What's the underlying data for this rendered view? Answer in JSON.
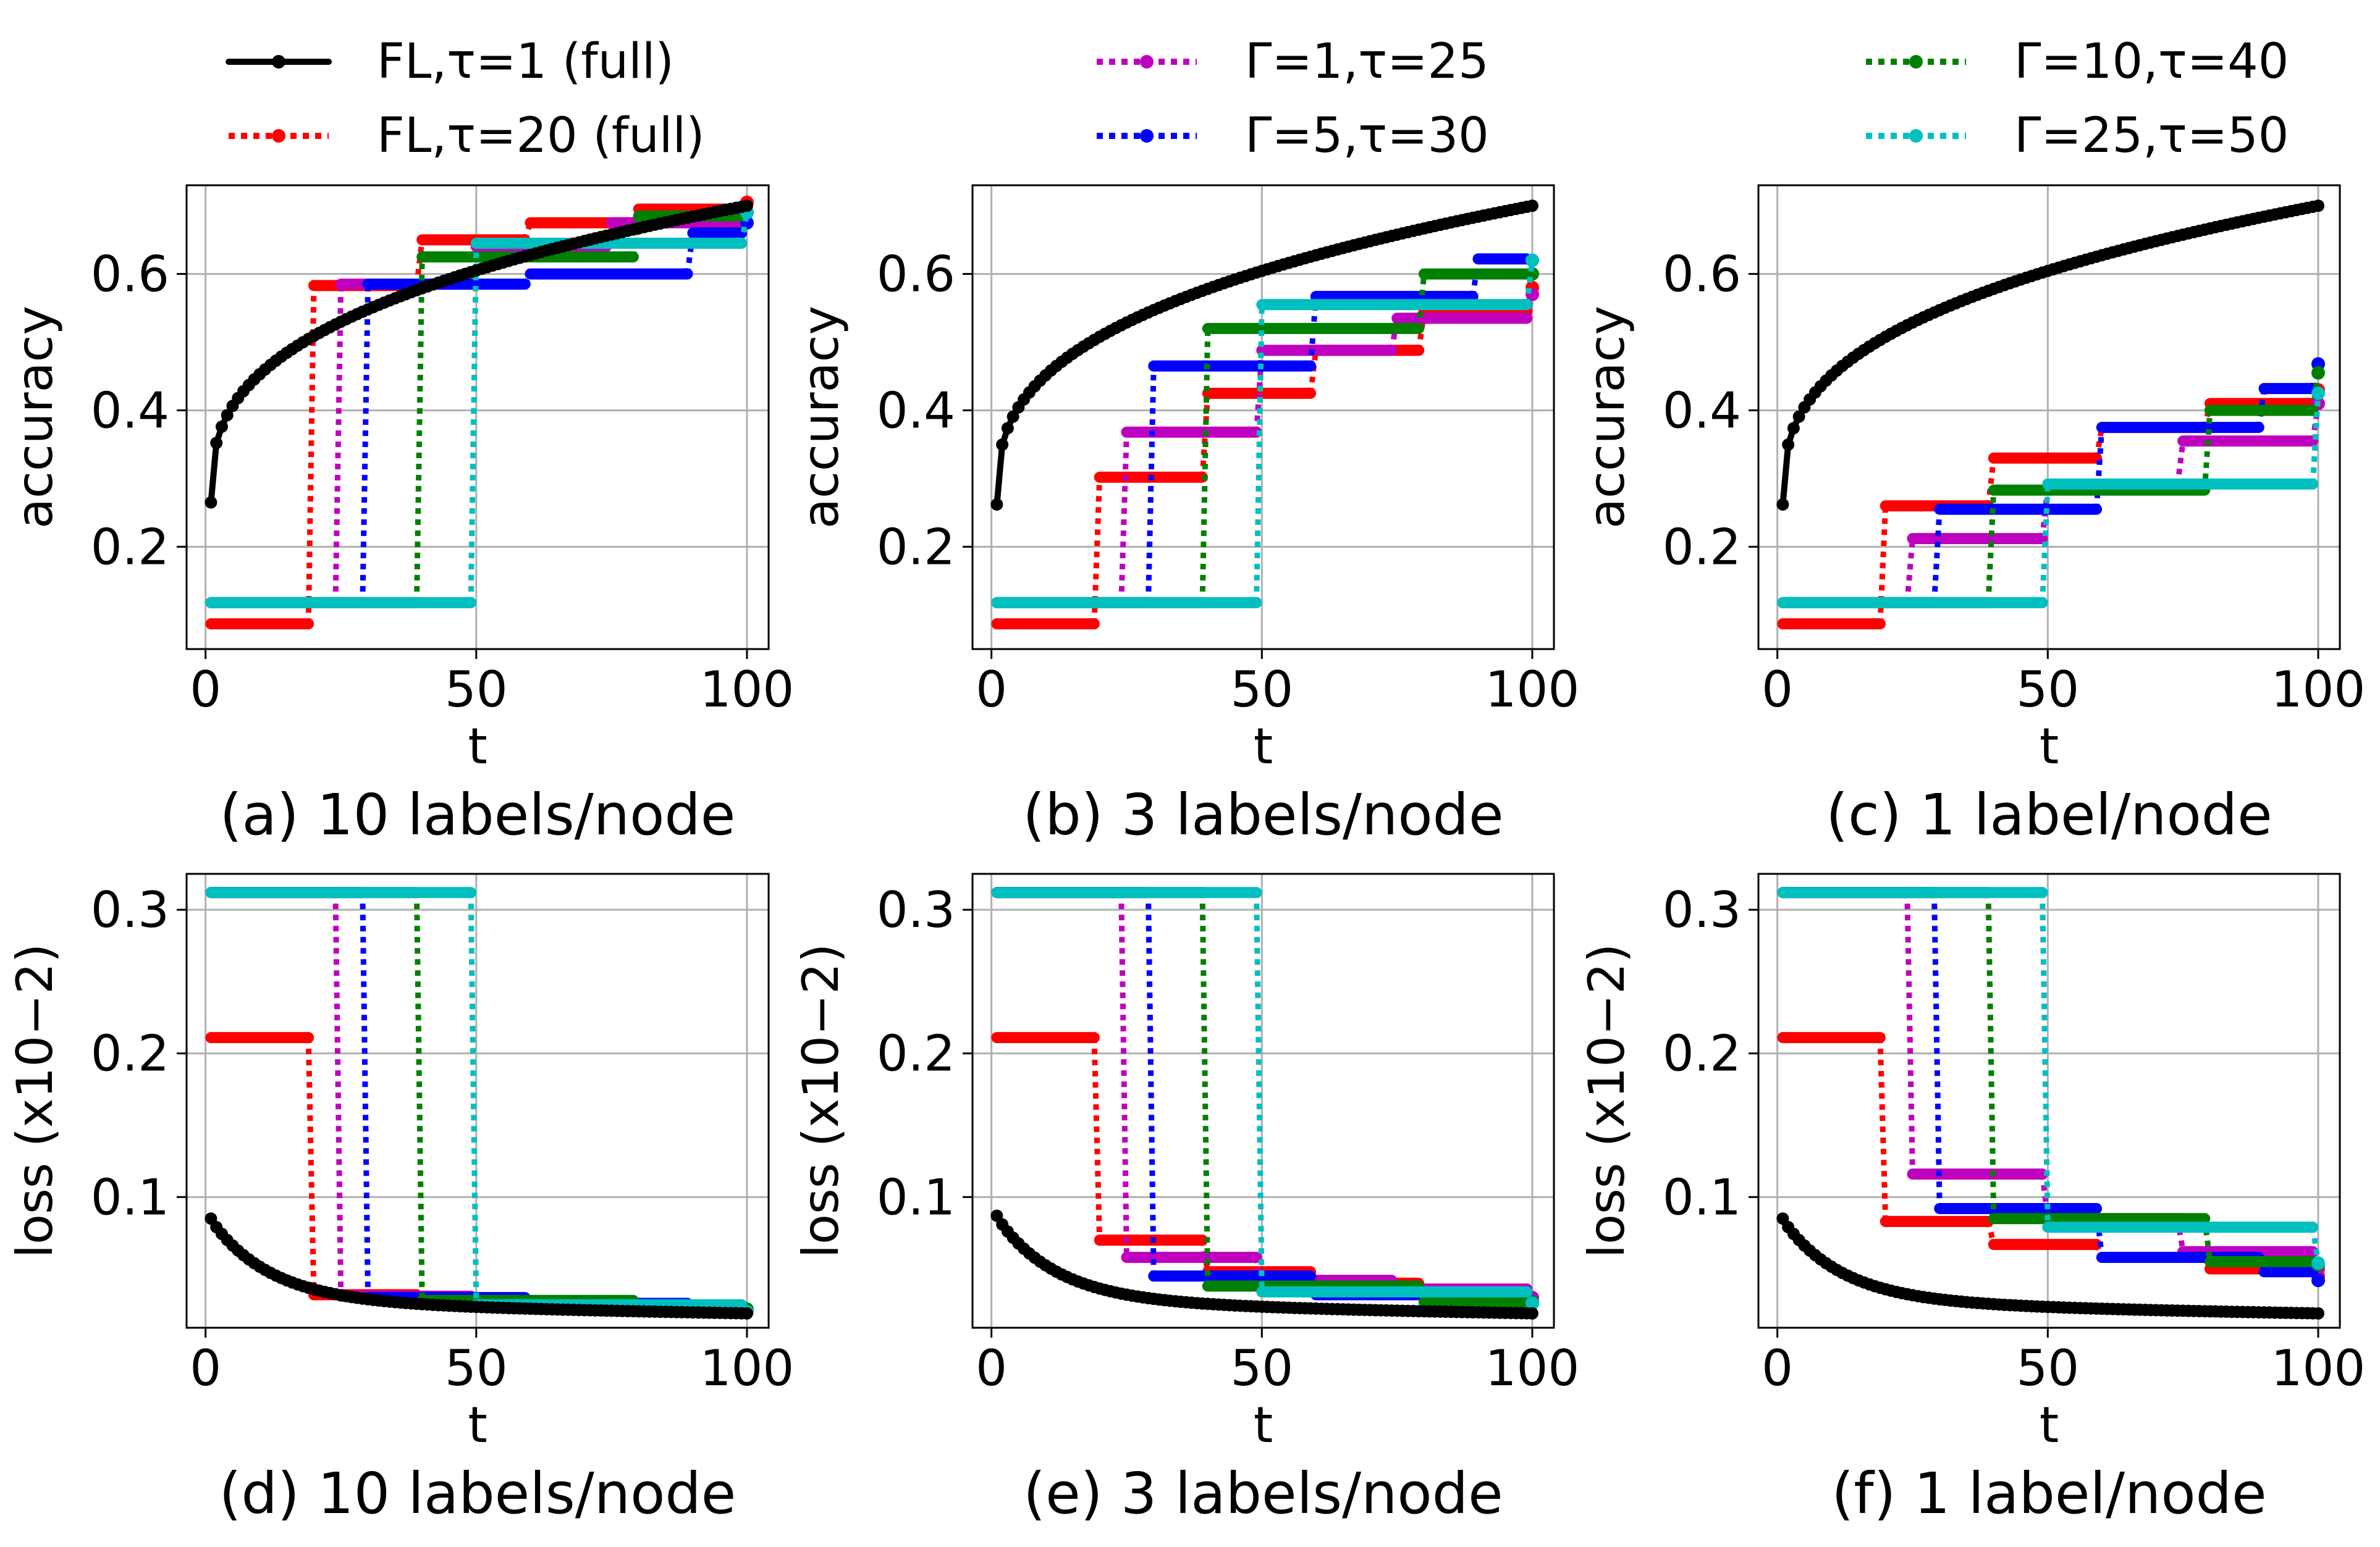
{
  "legend": {
    "entries": [
      {
        "label": "FL,τ=1 (full)",
        "color": "#000000",
        "style": "solid",
        "series": "fl1"
      },
      {
        "label": "FL,τ=20 (full)",
        "color": "#ff0000",
        "style": "dotted",
        "series": "fl20"
      },
      {
        "label": "Γ=1,τ=25",
        "color": "#bf00bf",
        "style": "dotted",
        "series": "g1"
      },
      {
        "label": "Γ=5,τ=30",
        "color": "#0000ff",
        "style": "dotted",
        "series": "g5"
      },
      {
        "label": "Γ=10,τ=40",
        "color": "#008000",
        "style": "dotted",
        "series": "g10"
      },
      {
        "label": "Γ=25,τ=50",
        "color": "#00bfbf",
        "style": "dotted",
        "series": "g25"
      }
    ]
  },
  "chart_data": [
    {
      "type": "line",
      "caption": "(a) 10 labels/node",
      "xlabel": "t",
      "ylabel": "accuracy",
      "xlim": [
        -3.5,
        104
      ],
      "ylim": [
        0.05,
        0.73
      ],
      "xticks": [
        0,
        50,
        100
      ],
      "yticks": [
        0.2,
        0.4,
        0.6
      ],
      "ytick_labels": [
        "0.2",
        "0.4",
        "0.6"
      ],
      "grid": true,
      "legend": "above figure",
      "curve": {
        "kind": "acc",
        "start": 0.265,
        "end": 0.7
      },
      "series": [
        {
          "name": "FL,τ=1 (full)",
          "id": "fl1"
        },
        {
          "name": "FL,τ=20 (full)",
          "id": "fl20",
          "tau": 20,
          "steps": [
            [
              1,
              0.087
            ],
            [
              20,
              0.583
            ],
            [
              40,
              0.65
            ],
            [
              60,
              0.675
            ],
            [
              80,
              0.695
            ],
            [
              100,
              0.705
            ]
          ]
        },
        {
          "name": "Γ=1,τ=25",
          "id": "g1",
          "tau": 25,
          "steps": [
            [
              1,
              0.118
            ],
            [
              25,
              0.585
            ],
            [
              50,
              0.64
            ],
            [
              75,
              0.675
            ],
            [
              100,
              0.69
            ]
          ]
        },
        {
          "name": "Γ=5,τ=30",
          "id": "g5",
          "tau": 30,
          "steps": [
            [
              1,
              0.118
            ],
            [
              30,
              0.585
            ],
            [
              60,
              0.6
            ],
            [
              90,
              0.66
            ],
            [
              100,
              0.675
            ]
          ]
        },
        {
          "name": "Γ=10,τ=40",
          "id": "g10",
          "tau": 40,
          "steps": [
            [
              1,
              0.118
            ],
            [
              40,
              0.625
            ],
            [
              80,
              0.685
            ],
            [
              100,
              0.69
            ]
          ]
        },
        {
          "name": "Γ=25,τ=50",
          "id": "g25",
          "tau": 50,
          "steps": [
            [
              1,
              0.118
            ],
            [
              50,
              0.645
            ],
            [
              100,
              0.69
            ]
          ]
        }
      ]
    },
    {
      "type": "line",
      "caption": "(b) 3 labels/node",
      "xlabel": "t",
      "ylabel": "accuracy",
      "xlim": [
        -3.5,
        104
      ],
      "ylim": [
        0.05,
        0.73
      ],
      "xticks": [
        0,
        50,
        100
      ],
      "yticks": [
        0.2,
        0.4,
        0.6
      ],
      "ytick_labels": [
        "0.2",
        "0.4",
        "0.6"
      ],
      "grid": true,
      "curve": {
        "kind": "acc",
        "start": 0.262,
        "end": 0.7
      },
      "series": [
        {
          "name": "FL,τ=1 (full)",
          "id": "fl1"
        },
        {
          "name": "FL,τ=20 (full)",
          "id": "fl20",
          "tau": 20,
          "steps": [
            [
              1,
              0.087
            ],
            [
              20,
              0.302
            ],
            [
              40,
              0.425
            ],
            [
              60,
              0.488
            ],
            [
              80,
              0.545
            ],
            [
              100,
              0.58
            ]
          ]
        },
        {
          "name": "Γ=1,τ=25",
          "id": "g1",
          "tau": 25,
          "steps": [
            [
              1,
              0.118
            ],
            [
              25,
              0.368
            ],
            [
              50,
              0.488
            ],
            [
              75,
              0.535
            ],
            [
              100,
              0.57
            ]
          ]
        },
        {
          "name": "Γ=5,τ=30",
          "id": "g5",
          "tau": 30,
          "steps": [
            [
              1,
              0.118
            ],
            [
              30,
              0.465
            ],
            [
              60,
              0.567
            ],
            [
              90,
              0.622
            ],
            [
              100,
              0.62
            ]
          ]
        },
        {
          "name": "Γ=10,τ=40",
          "id": "g10",
          "tau": 40,
          "steps": [
            [
              1,
              0.118
            ],
            [
              40,
              0.52
            ],
            [
              80,
              0.6
            ],
            [
              100,
              0.6
            ]
          ]
        },
        {
          "name": "Γ=25,τ=50",
          "id": "g25",
          "tau": 50,
          "steps": [
            [
              1,
              0.118
            ],
            [
              50,
              0.555
            ],
            [
              100,
              0.62
            ]
          ]
        }
      ]
    },
    {
      "type": "line",
      "caption": "(c) 1 label/node",
      "xlabel": "t",
      "ylabel": "accuracy",
      "xlim": [
        -3.5,
        104
      ],
      "ylim": [
        0.05,
        0.73
      ],
      "xticks": [
        0,
        50,
        100
      ],
      "yticks": [
        0.2,
        0.4,
        0.6
      ],
      "ytick_labels": [
        "0.2",
        "0.4",
        "0.6"
      ],
      "grid": true,
      "curve": {
        "kind": "acc",
        "start": 0.262,
        "end": 0.7
      },
      "series": [
        {
          "name": "FL,τ=1 (full)",
          "id": "fl1"
        },
        {
          "name": "FL,τ=20 (full)",
          "id": "fl20",
          "tau": 20,
          "steps": [
            [
              1,
              0.087
            ],
            [
              20,
              0.26
            ],
            [
              40,
              0.33
            ],
            [
              60,
              0.375
            ],
            [
              80,
              0.41
            ],
            [
              100,
              0.43
            ]
          ]
        },
        {
          "name": "Γ=1,τ=25",
          "id": "g1",
          "tau": 25,
          "steps": [
            [
              1,
              0.118
            ],
            [
              25,
              0.212
            ],
            [
              50,
              0.29
            ],
            [
              75,
              0.355
            ],
            [
              100,
              0.41
            ]
          ]
        },
        {
          "name": "Γ=5,τ=30",
          "id": "g5",
          "tau": 30,
          "steps": [
            [
              1,
              0.118
            ],
            [
              30,
              0.255
            ],
            [
              60,
              0.375
            ],
            [
              90,
              0.432
            ],
            [
              100,
              0.468
            ]
          ]
        },
        {
          "name": "Γ=10,τ=40",
          "id": "g10",
          "tau": 40,
          "steps": [
            [
              1,
              0.118
            ],
            [
              40,
              0.283
            ],
            [
              80,
              0.4
            ],
            [
              100,
              0.455
            ]
          ]
        },
        {
          "name": "Γ=25,τ=50",
          "id": "g25",
          "tau": 50,
          "steps": [
            [
              1,
              0.118
            ],
            [
              50,
              0.292
            ],
            [
              100,
              0.425
            ]
          ]
        }
      ]
    },
    {
      "type": "line",
      "caption": "(d) 10 labels/node",
      "xlabel": "t",
      "ylabel": "loss (x10−2)",
      "xlim": [
        -3.5,
        104
      ],
      "ylim": [
        0.009,
        0.325
      ],
      "xticks": [
        0,
        50,
        100
      ],
      "yticks": [
        0.1,
        0.2,
        0.3
      ],
      "ytick_labels": [
        "0.1",
        "0.2",
        "0.3"
      ],
      "grid": true,
      "curve": {
        "kind": "loss",
        "start": 0.085,
        "end": 0.019
      },
      "series": [
        {
          "name": "FL,τ=1 (full)",
          "id": "fl1"
        },
        {
          "name": "FL,τ=20 (full)",
          "id": "fl20",
          "tau": 20,
          "steps": [
            [
              1,
              0.211
            ],
            [
              20,
              0.032
            ],
            [
              40,
              0.028
            ],
            [
              60,
              0.025
            ],
            [
              80,
              0.022
            ],
            [
              100,
              0.021
            ]
          ]
        },
        {
          "name": "Γ=1,τ=25",
          "id": "g1",
          "tau": 25,
          "steps": [
            [
              1,
              0.312
            ],
            [
              25,
              0.031
            ],
            [
              50,
              0.027
            ],
            [
              75,
              0.023
            ],
            [
              100,
              0.021
            ]
          ]
        },
        {
          "name": "Γ=5,τ=30",
          "id": "g5",
          "tau": 30,
          "steps": [
            [
              1,
              0.312
            ],
            [
              30,
              0.03
            ],
            [
              60,
              0.026
            ],
            [
              90,
              0.022
            ],
            [
              100,
              0.021
            ]
          ]
        },
        {
          "name": "Γ=10,τ=40",
          "id": "g10",
          "tau": 40,
          "steps": [
            [
              1,
              0.312
            ],
            [
              40,
              0.028
            ],
            [
              80,
              0.023
            ],
            [
              100,
              0.022
            ]
          ]
        },
        {
          "name": "Γ=25,τ=50",
          "id": "g25",
          "tau": 50,
          "steps": [
            [
              1,
              0.312
            ],
            [
              50,
              0.025
            ],
            [
              100,
              0.02
            ]
          ]
        }
      ]
    },
    {
      "type": "line",
      "caption": "(e) 3 labels/node",
      "xlabel": "t",
      "ylabel": "loss (x10−2)",
      "xlim": [
        -3.5,
        104
      ],
      "ylim": [
        0.009,
        0.325
      ],
      "xticks": [
        0,
        50,
        100
      ],
      "yticks": [
        0.1,
        0.2,
        0.3
      ],
      "ytick_labels": [
        "0.1",
        "0.2",
        "0.3"
      ],
      "grid": true,
      "curve": {
        "kind": "loss",
        "start": 0.087,
        "end": 0.019
      },
      "series": [
        {
          "name": "FL,τ=1 (full)",
          "id": "fl1"
        },
        {
          "name": "FL,τ=20 (full)",
          "id": "fl20",
          "tau": 20,
          "steps": [
            [
              1,
              0.211
            ],
            [
              20,
              0.07
            ],
            [
              40,
              0.048
            ],
            [
              60,
              0.04
            ],
            [
              80,
              0.035
            ],
            [
              100,
              0.03
            ]
          ]
        },
        {
          "name": "Γ=1,τ=25",
          "id": "g1",
          "tau": 25,
          "steps": [
            [
              1,
              0.312
            ],
            [
              25,
              0.058
            ],
            [
              50,
              0.042
            ],
            [
              75,
              0.036
            ],
            [
              100,
              0.03
            ]
          ]
        },
        {
          "name": "Γ=5,τ=30",
          "id": "g5",
          "tau": 30,
          "steps": [
            [
              1,
              0.312
            ],
            [
              30,
              0.045
            ],
            [
              60,
              0.032
            ],
            [
              90,
              0.027
            ],
            [
              100,
              0.026
            ]
          ]
        },
        {
          "name": "Γ=10,τ=40",
          "id": "g10",
          "tau": 40,
          "steps": [
            [
              1,
              0.312
            ],
            [
              40,
              0.038
            ],
            [
              80,
              0.027
            ],
            [
              100,
              0.027
            ]
          ]
        },
        {
          "name": "Γ=25,τ=50",
          "id": "g25",
          "tau": 50,
          "steps": [
            [
              1,
              0.312
            ],
            [
              50,
              0.034
            ],
            [
              100,
              0.026
            ]
          ]
        }
      ]
    },
    {
      "type": "line",
      "caption": "(f) 1 label/node",
      "xlabel": "t",
      "ylabel": "loss (x10−2)",
      "xlim": [
        -3.5,
        104
      ],
      "ylim": [
        0.009,
        0.325
      ],
      "xticks": [
        0,
        50,
        100
      ],
      "yticks": [
        0.1,
        0.2,
        0.3
      ],
      "ytick_labels": [
        "0.1",
        "0.2",
        "0.3"
      ],
      "grid": true,
      "curve": {
        "kind": "loss",
        "start": 0.085,
        "end": 0.019
      },
      "series": [
        {
          "name": "FL,τ=1 (full)",
          "id": "fl1"
        },
        {
          "name": "FL,τ=20 (full)",
          "id": "fl20",
          "tau": 20,
          "steps": [
            [
              1,
              0.211
            ],
            [
              20,
              0.083
            ],
            [
              40,
              0.067
            ],
            [
              60,
              0.058
            ],
            [
              80,
              0.05
            ],
            [
              100,
              0.045
            ]
          ]
        },
        {
          "name": "Γ=1,τ=25",
          "id": "g1",
          "tau": 25,
          "steps": [
            [
              1,
              0.312
            ],
            [
              25,
              0.116
            ],
            [
              50,
              0.085
            ],
            [
              75,
              0.062
            ],
            [
              100,
              0.05
            ]
          ]
        },
        {
          "name": "Γ=5,τ=30",
          "id": "g5",
          "tau": 30,
          "steps": [
            [
              1,
              0.312
            ],
            [
              30,
              0.092
            ],
            [
              60,
              0.058
            ],
            [
              90,
              0.048
            ],
            [
              100,
              0.042
            ]
          ]
        },
        {
          "name": "Γ=10,τ=40",
          "id": "g10",
          "tau": 40,
          "steps": [
            [
              1,
              0.312
            ],
            [
              40,
              0.085
            ],
            [
              80,
              0.055
            ],
            [
              100,
              0.053
            ]
          ]
        },
        {
          "name": "Γ=25,τ=50",
          "id": "g25",
          "tau": 50,
          "steps": [
            [
              1,
              0.312
            ],
            [
              50,
              0.079
            ],
            [
              100,
              0.054
            ]
          ]
        }
      ]
    }
  ]
}
